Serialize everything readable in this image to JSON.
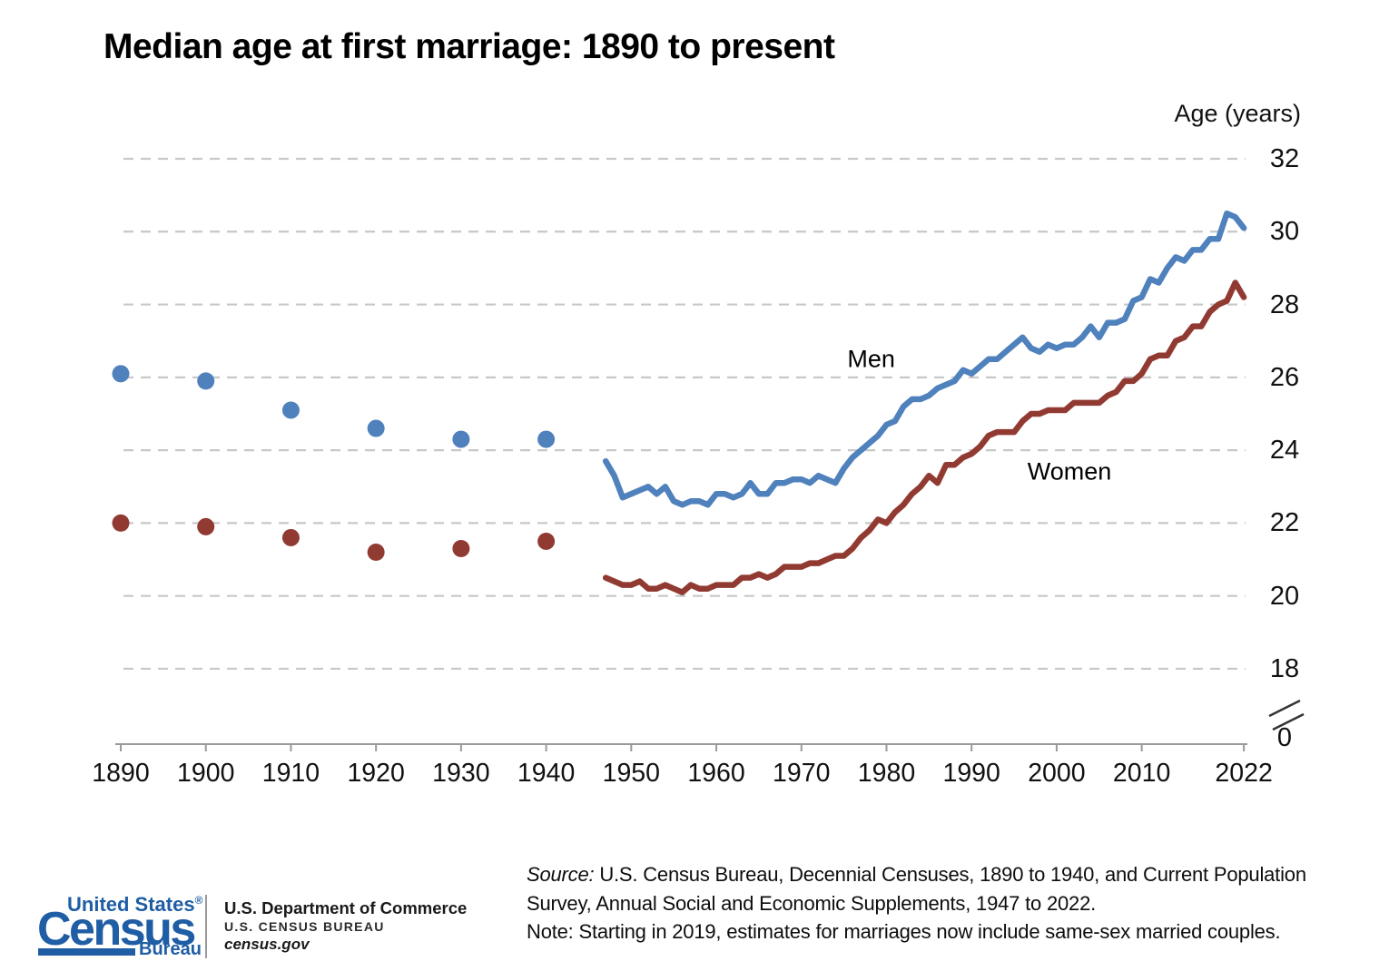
{
  "title": "Median age at first marriage: 1890 to present",
  "axis": {
    "y_title": "Age (years)",
    "y_ticks": [
      32,
      30,
      28,
      26,
      24,
      22,
      20,
      18
    ],
    "y_zero": "0",
    "x_ticks": [
      1890,
      1900,
      1910,
      1920,
      1930,
      1940,
      1950,
      1960,
      1970,
      1980,
      1990,
      2000,
      2010,
      2022
    ]
  },
  "colors": {
    "men": "#4f81bd",
    "women": "#913a32",
    "grid": "#c8c8c8",
    "axis": "#9a9a9a",
    "text": "#111111",
    "logo_blue": "#1f5da4"
  },
  "chart_data": {
    "type": "line",
    "title": "Median age at first marriage: 1890 to present",
    "xlabel": "",
    "ylabel": "Age (years)",
    "ylim": [
      0,
      32
    ],
    "y_axis_break": true,
    "y_display_range": [
      17.5,
      32.5
    ],
    "grid": true,
    "grid_style": "dashed-horizontal",
    "legend_position": "inline-annotations",
    "x_tick_labels": [
      "1890",
      "1900",
      "1910",
      "1920",
      "1930",
      "1940",
      "1950",
      "1960",
      "1970",
      "1980",
      "1990",
      "2000",
      "2010",
      "2022"
    ],
    "annotations": [
      {
        "text": "Men",
        "x": 1978.2,
        "y": 26.5
      },
      {
        "text": "Women",
        "x": 2001.5,
        "y": 23.4
      }
    ],
    "series": [
      {
        "id": "men-census-dots",
        "name": "Men (Decennial Censuses, 1890 to 1940)",
        "type": "scatter",
        "color": "#4f81bd",
        "x": [
          1890,
          1900,
          1910,
          1920,
          1930,
          1940
        ],
        "values": [
          26.1,
          25.9,
          25.1,
          24.6,
          24.3,
          24.3
        ]
      },
      {
        "id": "women-census-dots",
        "name": "Women (Decennial Censuses, 1890 to 1940)",
        "type": "scatter",
        "color": "#913a32",
        "x": [
          1890,
          1900,
          1910,
          1920,
          1930,
          1940
        ],
        "values": [
          22.0,
          21.9,
          21.6,
          21.2,
          21.3,
          21.5
        ]
      },
      {
        "id": "men-cps-line",
        "name": "Men (CPS ASEC, 1947 to 2022)",
        "type": "line",
        "color": "#4f81bd",
        "x": [
          1947,
          1948,
          1949,
          1950,
          1951,
          1952,
          1953,
          1954,
          1955,
          1956,
          1957,
          1958,
          1959,
          1960,
          1961,
          1962,
          1963,
          1964,
          1965,
          1966,
          1967,
          1968,
          1969,
          1970,
          1971,
          1972,
          1973,
          1974,
          1975,
          1976,
          1977,
          1978,
          1979,
          1980,
          1981,
          1982,
          1983,
          1984,
          1985,
          1986,
          1987,
          1988,
          1989,
          1990,
          1991,
          1992,
          1993,
          1994,
          1995,
          1996,
          1997,
          1998,
          1999,
          2000,
          2001,
          2002,
          2003,
          2004,
          2005,
          2006,
          2007,
          2008,
          2009,
          2010,
          2011,
          2012,
          2013,
          2014,
          2015,
          2016,
          2017,
          2018,
          2019,
          2020,
          2021,
          2022
        ],
        "values": [
          23.7,
          23.3,
          22.7,
          22.8,
          22.9,
          23.0,
          22.8,
          23.0,
          22.6,
          22.5,
          22.6,
          22.6,
          22.5,
          22.8,
          22.8,
          22.7,
          22.8,
          23.1,
          22.8,
          22.8,
          23.1,
          23.1,
          23.2,
          23.2,
          23.1,
          23.3,
          23.2,
          23.1,
          23.5,
          23.8,
          24.0,
          24.2,
          24.4,
          24.7,
          24.8,
          25.2,
          25.4,
          25.4,
          25.5,
          25.7,
          25.8,
          25.9,
          26.2,
          26.1,
          26.3,
          26.5,
          26.5,
          26.7,
          26.9,
          27.1,
          26.8,
          26.7,
          26.9,
          26.8,
          26.9,
          26.9,
          27.1,
          27.4,
          27.1,
          27.5,
          27.5,
          27.6,
          28.1,
          28.2,
          28.7,
          28.6,
          29.0,
          29.3,
          29.2,
          29.5,
          29.5,
          29.8,
          29.8,
          30.5,
          30.4,
          30.1
        ]
      },
      {
        "id": "women-cps-line",
        "name": "Women (CPS ASEC, 1947 to 2022)",
        "type": "line",
        "color": "#913a32",
        "x": [
          1947,
          1948,
          1949,
          1950,
          1951,
          1952,
          1953,
          1954,
          1955,
          1956,
          1957,
          1958,
          1959,
          1960,
          1961,
          1962,
          1963,
          1964,
          1965,
          1966,
          1967,
          1968,
          1969,
          1970,
          1971,
          1972,
          1973,
          1974,
          1975,
          1976,
          1977,
          1978,
          1979,
          1980,
          1981,
          1982,
          1983,
          1984,
          1985,
          1986,
          1987,
          1988,
          1989,
          1990,
          1991,
          1992,
          1993,
          1994,
          1995,
          1996,
          1997,
          1998,
          1999,
          2000,
          2001,
          2002,
          2003,
          2004,
          2005,
          2006,
          2007,
          2008,
          2009,
          2010,
          2011,
          2012,
          2013,
          2014,
          2015,
          2016,
          2017,
          2018,
          2019,
          2020,
          2021,
          2022
        ],
        "values": [
          20.5,
          20.4,
          20.3,
          20.3,
          20.4,
          20.2,
          20.2,
          20.3,
          20.2,
          20.1,
          20.3,
          20.2,
          20.2,
          20.3,
          20.3,
          20.3,
          20.5,
          20.5,
          20.6,
          20.5,
          20.6,
          20.8,
          20.8,
          20.8,
          20.9,
          20.9,
          21.0,
          21.1,
          21.1,
          21.3,
          21.6,
          21.8,
          22.1,
          22.0,
          22.3,
          22.5,
          22.8,
          23.0,
          23.3,
          23.1,
          23.6,
          23.6,
          23.8,
          23.9,
          24.1,
          24.4,
          24.5,
          24.5,
          24.5,
          24.8,
          25.0,
          25.0,
          25.1,
          25.1,
          25.1,
          25.3,
          25.3,
          25.3,
          25.3,
          25.5,
          25.6,
          25.9,
          25.9,
          26.1,
          26.5,
          26.6,
          26.6,
          27.0,
          27.1,
          27.4,
          27.4,
          27.8,
          28.0,
          28.1,
          28.6,
          28.2
        ]
      }
    ]
  },
  "footer": {
    "source_label": "Source:",
    "source_rest": " U.S. Census Bureau, Decennial Censuses, 1890 to 1940, and Current Population",
    "source_line2": "Survey, Annual Social and Economic Supplements, 1947 to 2022.",
    "note": "Note: Starting in 2019, estimates for marriages now include same-sex married couples."
  },
  "logo": {
    "name_top": "United States",
    "registered": "®",
    "census": "Census",
    "bureau": "Bureau",
    "dept": "U.S. Department of Commerce",
    "agency": "U.S. CENSUS BUREAU",
    "site": "census.gov"
  }
}
